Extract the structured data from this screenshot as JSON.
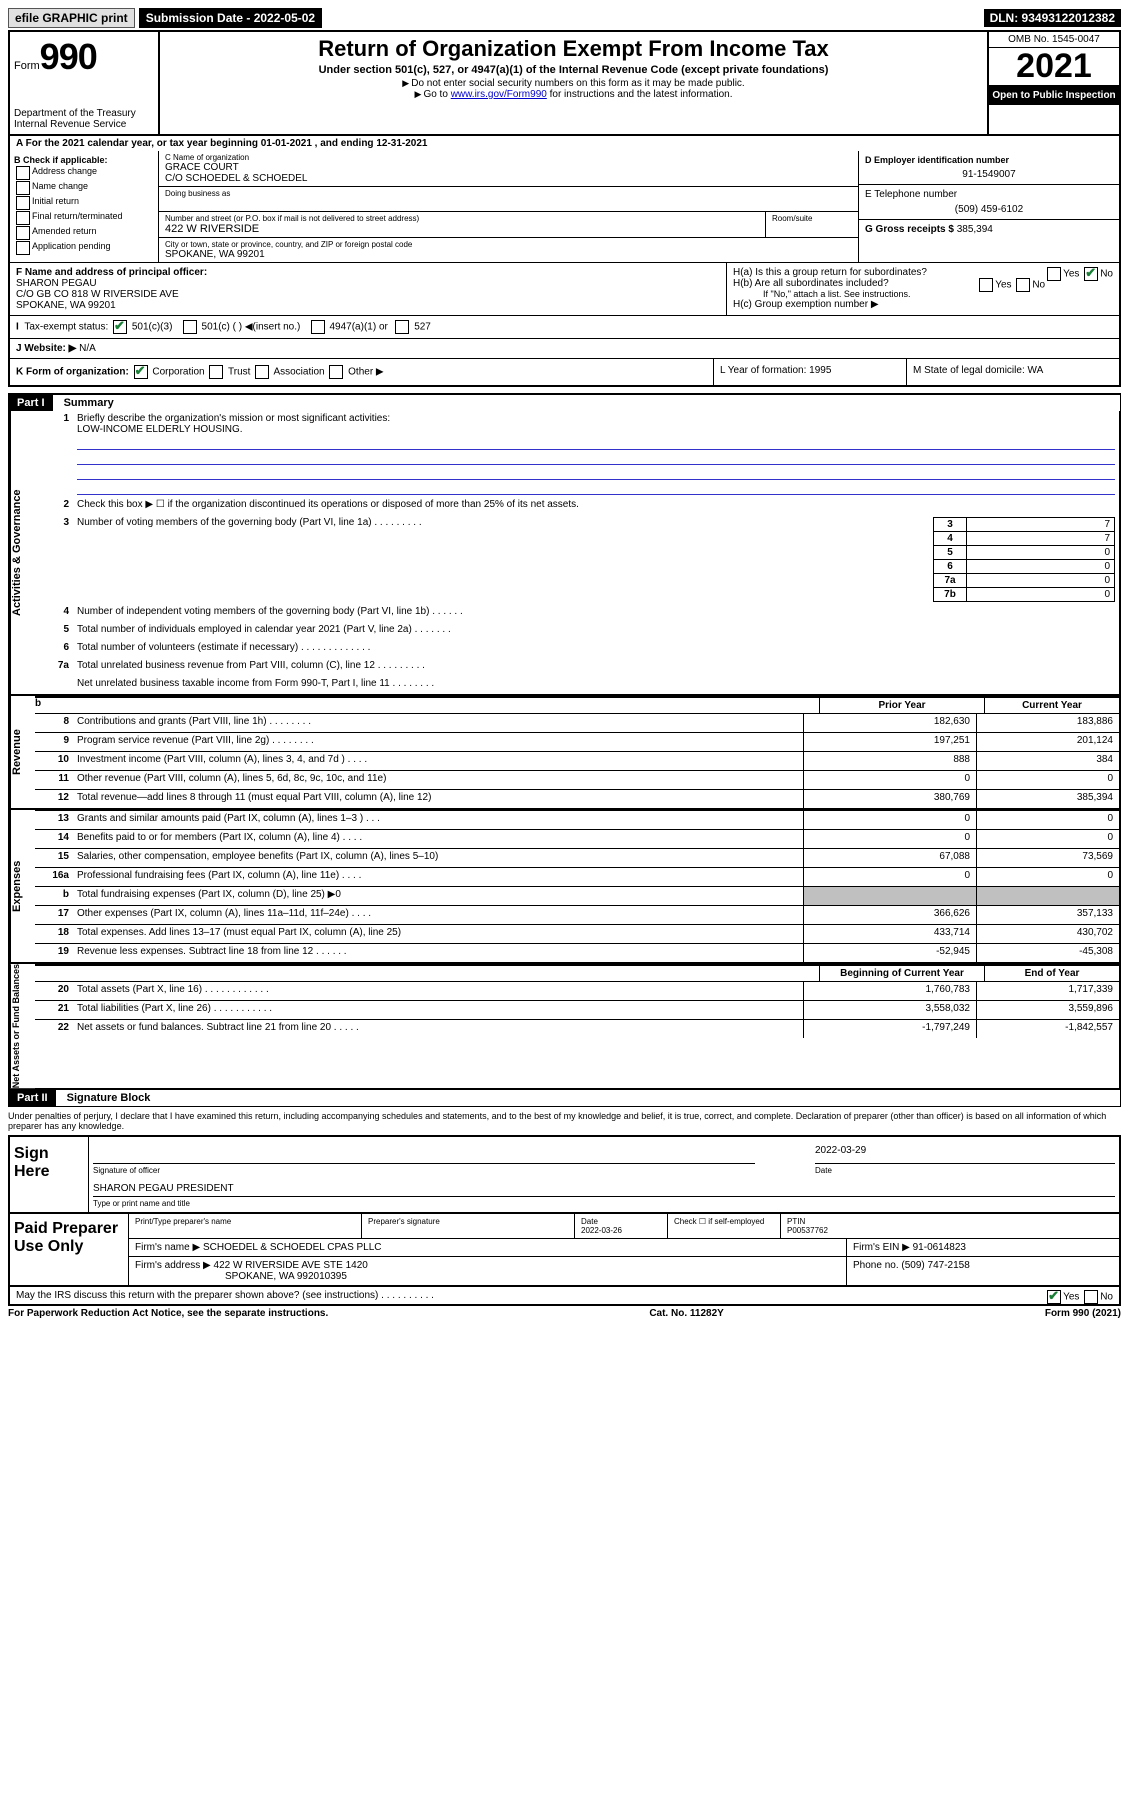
{
  "topbar": {
    "efile": "efile GRAPHIC print",
    "submission": "Submission Date - 2022-05-02",
    "dln": "DLN: 93493122012382"
  },
  "header": {
    "form_prefix": "Form",
    "form_number": "990",
    "dept": "Department of the Treasury",
    "irs": "Internal Revenue Service",
    "title": "Return of Organization Exempt From Income Tax",
    "subtitle": "Under section 501(c), 527, or 4947(a)(1) of the Internal Revenue Code (except private foundations)",
    "note1": "Do not enter social security numbers on this form as it may be made public.",
    "note2_pre": "Go to ",
    "note2_link": "www.irs.gov/Form990",
    "note2_post": " for instructions and the latest information.",
    "omb": "OMB No. 1545-0047",
    "year": "2021",
    "open": "Open to Public Inspection"
  },
  "row_a": "A  For the 2021 calendar year, or tax year beginning 01-01-2021     , and ending 12-31-2021",
  "box_b": {
    "label": "B Check if applicable:",
    "items": [
      "Address change",
      "Name change",
      "Initial return",
      "Final return/terminated",
      "Amended return",
      "Application pending"
    ]
  },
  "box_c": {
    "name_lbl": "C Name of organization",
    "name1": "GRACE COURT",
    "name2": "C/O SCHOEDEL & SCHOEDEL",
    "dba_lbl": "Doing business as",
    "street_lbl": "Number and street (or P.O. box if mail is not delivered to street address)",
    "street": "422 W RIVERSIDE",
    "suite_lbl": "Room/suite",
    "city_lbl": "City or town, state or province, country, and ZIP or foreign postal code",
    "city": "SPOKANE, WA   99201"
  },
  "box_d": {
    "lbl": "D Employer identification number",
    "val": "91-1549007"
  },
  "box_e": {
    "lbl": "E Telephone number",
    "val": "(509) 459-6102"
  },
  "box_g": {
    "lbl": "G Gross receipts $",
    "val": "385,394"
  },
  "box_f": {
    "lbl": "F  Name and address of principal officer:",
    "name": "SHARON PEGAU",
    "addr1": "C/O GB CO 818 W RIVERSIDE AVE",
    "addr2": "SPOKANE, WA   99201"
  },
  "box_h": {
    "a": "H(a)  Is this a group return for subordinates?",
    "b": "H(b)  Are all subordinates included?",
    "note": "If \"No,\" attach a list. See instructions.",
    "c": "H(c)  Group exemption number ▶"
  },
  "row_i": {
    "lbl": "Tax-exempt status:",
    "opts": [
      "501(c)(3)",
      "501(c) (   ) ◀(insert no.)",
      "4947(a)(1) or",
      "527"
    ]
  },
  "row_j": {
    "lbl": "J   Website: ▶",
    "val": "N/A"
  },
  "row_k": {
    "lbl": "K Form of organization:",
    "opts": [
      "Corporation",
      "Trust",
      "Association",
      "Other ▶"
    ],
    "l": "L Year of formation: 1995",
    "m": "M State of legal domicile: WA"
  },
  "part1": {
    "hdr": "Part I",
    "title": "Summary"
  },
  "summary": {
    "q1": "Briefly describe the organization's mission or most significant activities:",
    "mission": "LOW-INCOME ELDERLY HOUSING.",
    "q2": "Check this box ▶ ☐  if the organization discontinued its operations or disposed of more than 25% of its net assets.",
    "lines_gov": [
      {
        "n": "3",
        "d": "Number of voting members of the governing body (Part VI, line 1a)   .     .     .     .     .     .     .     .     .",
        "b": "3",
        "v": "7"
      },
      {
        "n": "4",
        "d": "Number of independent voting members of the governing body (Part VI, line 1b)     .     .     .     .     .     .",
        "b": "4",
        "v": "7"
      },
      {
        "n": "5",
        "d": "Total number of individuals employed in calendar year 2021 (Part V, line 2a)   .     .     .     .     .     .     .",
        "b": "5",
        "v": "0"
      },
      {
        "n": "6",
        "d": "Total number of volunteers (estimate if necessary)   .     .     .     .     .     .     .     .     .     .     .     .     .",
        "b": "6",
        "v": "0"
      },
      {
        "n": "7a",
        "d": "Total unrelated business revenue from Part VIII, column (C), line 12   .     .     .     .     .     .     .     .     .",
        "b": "7a",
        "v": "0"
      },
      {
        "n": "",
        "d": "Net unrelated business taxable income from Form 990-T, Part I, line 11   .     .     .     .     .     .     .     .",
        "b": "7b",
        "v": "0"
      }
    ],
    "col_hdr": {
      "prior": "Prior Year",
      "current": "Current Year"
    },
    "lines_rev": [
      {
        "n": "8",
        "d": "Contributions and grants (Part VIII, line 1h)   .     .     .     .     .     .     .     .",
        "p": "182,630",
        "c": "183,886"
      },
      {
        "n": "9",
        "d": "Program service revenue (Part VIII, line 2g)   .     .     .     .     .     .     .     .",
        "p": "197,251",
        "c": "201,124"
      },
      {
        "n": "10",
        "d": "Investment income (Part VIII, column (A), lines 3, 4, and 7d )   .     .     .     .",
        "p": "888",
        "c": "384"
      },
      {
        "n": "11",
        "d": "Other revenue (Part VIII, column (A), lines 5, 6d, 8c, 9c, 10c, and 11e)",
        "p": "0",
        "c": "0"
      },
      {
        "n": "12",
        "d": "Total revenue—add lines 8 through 11 (must equal Part VIII, column (A), line 12)",
        "p": "380,769",
        "c": "385,394"
      }
    ],
    "lines_exp": [
      {
        "n": "13",
        "d": "Grants and similar amounts paid (Part IX, column (A), lines 1–3 )   .     .     .",
        "p": "0",
        "c": "0"
      },
      {
        "n": "14",
        "d": "Benefits paid to or for members (Part IX, column (A), line 4)   .     .     .     .",
        "p": "0",
        "c": "0"
      },
      {
        "n": "15",
        "d": "Salaries, other compensation, employee benefits (Part IX, column (A), lines 5–10)",
        "p": "67,088",
        "c": "73,569"
      },
      {
        "n": "16a",
        "d": "Professional fundraising fees (Part IX, column (A), line 11e)   .     .     .     .",
        "p": "0",
        "c": "0"
      },
      {
        "n": "b",
        "d": "Total fundraising expenses (Part IX, column (D), line 25) ▶0",
        "p": "",
        "c": "",
        "shade": true
      },
      {
        "n": "17",
        "d": "Other expenses (Part IX, column (A), lines 11a–11d, 11f–24e)   .     .     .     .",
        "p": "366,626",
        "c": "357,133"
      },
      {
        "n": "18",
        "d": "Total expenses. Add lines 13–17 (must equal Part IX, column (A), line 25)",
        "p": "433,714",
        "c": "430,702"
      },
      {
        "n": "19",
        "d": "Revenue less expenses. Subtract line 18 from line 12   .     .     .     .     .     .",
        "p": "-52,945",
        "c": "-45,308"
      }
    ],
    "col_hdr2": {
      "prior": "Beginning of Current Year",
      "current": "End of Year"
    },
    "lines_net": [
      {
        "n": "20",
        "d": "Total assets (Part X, line 16)   .     .     .     .     .     .     .     .     .     .     .     .",
        "p": "1,760,783",
        "c": "1,717,339"
      },
      {
        "n": "21",
        "d": "Total liabilities (Part X, line 26)   .     .     .     .     .     .     .     .     .     .     .",
        "p": "3,558,032",
        "c": "3,559,896"
      },
      {
        "n": "22",
        "d": "Net assets or fund balances. Subtract line 21 from line 20   .     .     .     .     .",
        "p": "-1,797,249",
        "c": "-1,842,557"
      }
    ]
  },
  "sidebars": {
    "s1": "Activities & Governance",
    "s2": "Revenue",
    "s3": "Expenses",
    "s4": "Net Assets or Fund Balances"
  },
  "part2": {
    "hdr": "Part II",
    "title": "Signature Block"
  },
  "penalties": "Under penalties of perjury, I declare that I have examined this return, including accompanying schedules and statements, and to the best of my knowledge and belief, it is true, correct, and complete. Declaration of preparer (other than officer) is based on all information of which preparer has any knowledge.",
  "sign": {
    "label": "Sign Here",
    "date": "2022-03-29",
    "sig_lbl": "Signature of officer",
    "date_lbl": "Date",
    "name": "SHARON PEGAU  PRESIDENT",
    "name_lbl": "Type or print name and title"
  },
  "paid": {
    "label": "Paid Preparer Use Only",
    "h1": "Print/Type preparer's name",
    "h2": "Preparer's signature",
    "h3": "Date",
    "date": "2022-03-26",
    "h4": "Check ☐ if self-employed",
    "h5": "PTIN",
    "ptin": "P00537762",
    "firm_lbl": "Firm's name      ▶",
    "firm": "SCHOEDEL & SCHOEDEL CPAS PLLC",
    "ein_lbl": "Firm's EIN ▶",
    "ein": "91-0614823",
    "addr_lbl": "Firm's address ▶",
    "addr1": "422 W RIVERSIDE AVE STE 1420",
    "addr2": "SPOKANE, WA   992010395",
    "phone_lbl": "Phone no.",
    "phone": "(509) 747-2158"
  },
  "discuss": "May the IRS discuss this return with the preparer shown above? (see instructions)    .     .     .     .     .     .     .     .     .     .",
  "footer": {
    "left": "For Paperwork Reduction Act Notice, see the separate instructions.",
    "mid": "Cat. No. 11282Y",
    "right": "Form 990 (2021)"
  }
}
